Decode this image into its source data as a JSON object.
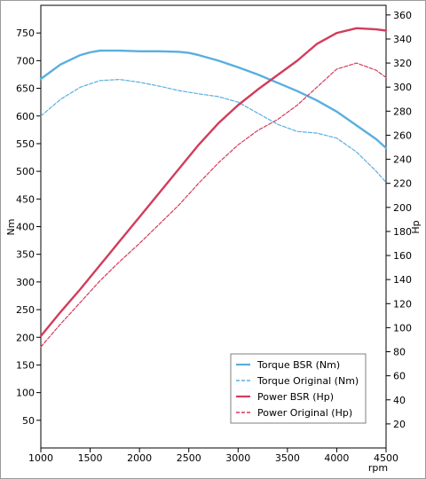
{
  "chart_data": {
    "type": "line",
    "xlabel": "rpm",
    "ylabel_left": "Nm",
    "ylabel_right": "Hp",
    "xlim": [
      1000,
      4500
    ],
    "ylim_left": [
      0,
      800
    ],
    "ylim_right": [
      0,
      368
    ],
    "x_ticks": [
      1000,
      1500,
      2000,
      2500,
      3000,
      3500,
      4000,
      4500
    ],
    "y_left_ticks": [
      50,
      100,
      150,
      200,
      250,
      300,
      350,
      400,
      450,
      500,
      550,
      600,
      650,
      700,
      750
    ],
    "y_right_ticks": [
      20,
      40,
      60,
      80,
      100,
      120,
      140,
      160,
      180,
      200,
      220,
      240,
      260,
      280,
      300,
      320,
      340,
      360
    ],
    "grid": false,
    "legend_position": "bottom-right",
    "series": [
      {
        "name": "Torque BSR (Nm)",
        "axis": "left",
        "style": "solid",
        "color": "#5aaee0",
        "x": [
          1000,
          1200,
          1400,
          1500,
          1600,
          1800,
          2000,
          2200,
          2400,
          2500,
          2600,
          2800,
          3000,
          3200,
          3400,
          3600,
          3800,
          4000,
          4200,
          4400,
          4500
        ],
        "y": [
          667,
          693,
          710,
          715,
          718,
          718,
          717,
          717,
          716,
          714,
          710,
          700,
          688,
          675,
          660,
          645,
          628,
          608,
          583,
          558,
          542
        ]
      },
      {
        "name": "Torque Original (Nm)",
        "axis": "left",
        "style": "dashed",
        "color": "#5aaee0",
        "x": [
          1000,
          1200,
          1400,
          1600,
          1800,
          2000,
          2200,
          2400,
          2600,
          2800,
          3000,
          3200,
          3400,
          3600,
          3800,
          4000,
          4200,
          4400,
          4500
        ],
        "y": [
          600,
          630,
          652,
          664,
          666,
          661,
          654,
          646,
          640,
          635,
          625,
          605,
          585,
          572,
          569,
          560,
          535,
          500,
          480
        ]
      },
      {
        "name": "Power BSR (Hp)",
        "axis": "right",
        "style": "solid",
        "color": "#d23c5a",
        "x": [
          1000,
          1200,
          1400,
          1600,
          1800,
          2000,
          2200,
          2400,
          2600,
          2800,
          3000,
          3200,
          3400,
          3600,
          3800,
          4000,
          4200,
          4400,
          4500
        ],
        "y": [
          93,
          113,
          132,
          152,
          172,
          192,
          212,
          232,
          252,
          270,
          285,
          298,
          310,
          322,
          336,
          345,
          349,
          348,
          347
        ]
      },
      {
        "name": "Power Original (Hp)",
        "axis": "right",
        "style": "dashed",
        "color": "#d23c5a",
        "x": [
          1000,
          1200,
          1400,
          1600,
          1800,
          2000,
          2200,
          2400,
          2600,
          2800,
          3000,
          3200,
          3400,
          3600,
          3800,
          4000,
          4200,
          4400,
          4500
        ],
        "y": [
          84,
          103,
          121,
          139,
          155,
          170,
          186,
          202,
          220,
          237,
          252,
          264,
          273,
          285,
          300,
          315,
          320,
          314,
          308
        ]
      }
    ]
  }
}
